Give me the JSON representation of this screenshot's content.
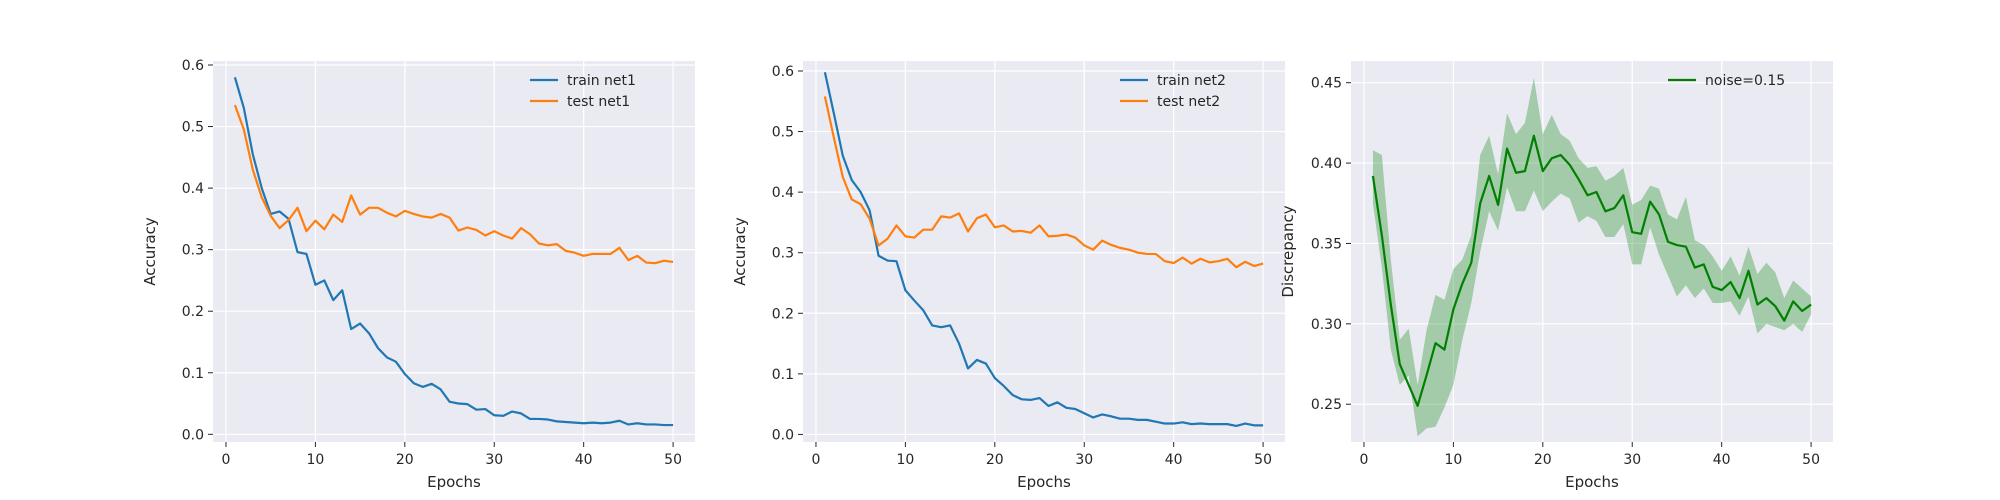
{
  "chart_data": [
    {
      "type": "line",
      "xlabel": "Epochs",
      "ylabel": "Accuracy",
      "xlim": [
        -1.45,
        52.45
      ],
      "ylim": [
        -0.0125,
        0.6065
      ],
      "xticks": [
        0,
        10,
        20,
        30,
        40,
        50
      ],
      "yticks": [
        0.0,
        0.1,
        0.2,
        0.3,
        0.4,
        0.5,
        0.6
      ],
      "ytick_labels": [
        "0.0",
        "0.1",
        "0.2",
        "0.3",
        "0.4",
        "0.5",
        "0.6"
      ],
      "grid": true,
      "legend_position": "top-right",
      "x": [
        1,
        2,
        3,
        4,
        5,
        6,
        7,
        8,
        9,
        10,
        11,
        12,
        13,
        14,
        15,
        16,
        17,
        18,
        19,
        20,
        21,
        22,
        23,
        24,
        25,
        26,
        27,
        28,
        29,
        30,
        31,
        32,
        33,
        34,
        35,
        36,
        37,
        38,
        39,
        40,
        41,
        42,
        43,
        44,
        45,
        46,
        47,
        48,
        49,
        50
      ],
      "series": [
        {
          "name": "train net1",
          "color": "#1f77b4",
          "values": [
            0.58,
            0.53,
            0.455,
            0.4,
            0.358,
            0.362,
            0.35,
            0.296,
            0.293,
            0.243,
            0.25,
            0.218,
            0.234,
            0.171,
            0.18,
            0.164,
            0.14,
            0.125,
            0.118,
            0.098,
            0.083,
            0.077,
            0.082,
            0.073,
            0.053,
            0.05,
            0.049,
            0.04,
            0.041,
            0.031,
            0.03,
            0.037,
            0.034,
            0.025,
            0.025,
            0.024,
            0.021,
            0.02,
            0.019,
            0.018,
            0.019,
            0.018,
            0.019,
            0.022,
            0.016,
            0.018,
            0.016,
            0.016,
            0.015,
            0.015
          ]
        },
        {
          "name": "test net1",
          "color": "#ff7f0e",
          "values": [
            0.535,
            0.495,
            0.43,
            0.385,
            0.355,
            0.335,
            0.348,
            0.368,
            0.33,
            0.347,
            0.333,
            0.357,
            0.345,
            0.388,
            0.357,
            0.368,
            0.368,
            0.36,
            0.354,
            0.363,
            0.358,
            0.354,
            0.352,
            0.358,
            0.352,
            0.331,
            0.336,
            0.332,
            0.323,
            0.33,
            0.323,
            0.318,
            0.335,
            0.325,
            0.31,
            0.307,
            0.309,
            0.298,
            0.295,
            0.29,
            0.293,
            0.293,
            0.293,
            0.303,
            0.283,
            0.29,
            0.279,
            0.278,
            0.282,
            0.28
          ]
        }
      ]
    },
    {
      "type": "line",
      "xlabel": "Epochs",
      "ylabel": "Accuracy",
      "xlim": [
        -1.45,
        52.45
      ],
      "ylim": [
        -0.0125,
        0.6165
      ],
      "xticks": [
        0,
        10,
        20,
        30,
        40,
        50
      ],
      "yticks": [
        0.0,
        0.1,
        0.2,
        0.3,
        0.4,
        0.5,
        0.6
      ],
      "ytick_labels": [
        "0.0",
        "0.1",
        "0.2",
        "0.3",
        "0.4",
        "0.5",
        "0.6"
      ],
      "grid": true,
      "legend_position": "top-right",
      "x": [
        1,
        2,
        3,
        4,
        5,
        6,
        7,
        8,
        9,
        10,
        11,
        12,
        13,
        14,
        15,
        16,
        17,
        18,
        19,
        20,
        21,
        22,
        23,
        24,
        25,
        26,
        27,
        28,
        29,
        30,
        31,
        32,
        33,
        34,
        35,
        36,
        37,
        38,
        39,
        40,
        41,
        42,
        43,
        44,
        45,
        46,
        47,
        48,
        49,
        50
      ],
      "series": [
        {
          "name": "train net2",
          "color": "#1f77b4",
          "values": [
            0.598,
            0.53,
            0.46,
            0.42,
            0.4,
            0.37,
            0.295,
            0.287,
            0.286,
            0.238,
            0.221,
            0.205,
            0.18,
            0.177,
            0.18,
            0.15,
            0.109,
            0.123,
            0.117,
            0.093,
            0.08,
            0.065,
            0.058,
            0.057,
            0.06,
            0.047,
            0.053,
            0.044,
            0.042,
            0.035,
            0.028,
            0.033,
            0.03,
            0.026,
            0.026,
            0.024,
            0.024,
            0.021,
            0.018,
            0.018,
            0.02,
            0.017,
            0.018,
            0.017,
            0.017,
            0.017,
            0.014,
            0.018,
            0.015,
            0.015
          ]
        },
        {
          "name": "test net2",
          "color": "#ff7f0e",
          "values": [
            0.558,
            0.49,
            0.425,
            0.388,
            0.38,
            0.356,
            0.312,
            0.323,
            0.345,
            0.327,
            0.325,
            0.338,
            0.338,
            0.36,
            0.358,
            0.365,
            0.335,
            0.357,
            0.363,
            0.342,
            0.345,
            0.335,
            0.336,
            0.333,
            0.345,
            0.327,
            0.328,
            0.33,
            0.325,
            0.312,
            0.305,
            0.32,
            0.313,
            0.308,
            0.305,
            0.3,
            0.298,
            0.298,
            0.286,
            0.283,
            0.292,
            0.282,
            0.29,
            0.284,
            0.286,
            0.29,
            0.276,
            0.285,
            0.278,
            0.282
          ]
        }
      ]
    },
    {
      "type": "line",
      "xlabel": "Epochs",
      "ylabel": "Discrepancy",
      "xlim": [
        -1.45,
        52.45
      ],
      "ylim": [
        0.2265,
        0.4635
      ],
      "xticks": [
        0,
        10,
        20,
        30,
        40,
        50
      ],
      "yticks": [
        0.25,
        0.3,
        0.35,
        0.4,
        0.45
      ],
      "ytick_labels": [
        "0.25",
        "0.30",
        "0.35",
        "0.40",
        "0.45"
      ],
      "grid": true,
      "legend_position": "top-right",
      "x": [
        1,
        2,
        3,
        4,
        5,
        6,
        7,
        8,
        9,
        10,
        11,
        12,
        13,
        14,
        15,
        16,
        17,
        18,
        19,
        20,
        21,
        22,
        23,
        24,
        25,
        26,
        27,
        28,
        29,
        30,
        31,
        32,
        33,
        34,
        35,
        36,
        37,
        38,
        39,
        40,
        41,
        42,
        43,
        44,
        45,
        46,
        47,
        48,
        49,
        50
      ],
      "series": [
        {
          "name": "noise=0.15",
          "color": "#008000",
          "values": [
            0.392,
            0.355,
            0.312,
            0.275,
            0.262,
            0.249,
            0.268,
            0.288,
            0.284,
            0.309,
            0.325,
            0.338,
            0.375,
            0.392,
            0.374,
            0.409,
            0.394,
            0.395,
            0.417,
            0.395,
            0.403,
            0.405,
            0.399,
            0.39,
            0.38,
            0.382,
            0.37,
            0.372,
            0.38,
            0.357,
            0.356,
            0.376,
            0.368,
            0.351,
            0.349,
            0.348,
            0.335,
            0.337,
            0.323,
            0.321,
            0.326,
            0.316,
            0.333,
            0.312,
            0.316,
            0.311,
            0.302,
            0.314,
            0.308,
            0.312
          ],
          "band_upper": [
            0.408,
            0.405,
            0.34,
            0.29,
            0.297,
            0.262,
            0.296,
            0.318,
            0.315,
            0.334,
            0.34,
            0.355,
            0.405,
            0.417,
            0.393,
            0.431,
            0.418,
            0.425,
            0.453,
            0.418,
            0.43,
            0.418,
            0.414,
            0.403,
            0.397,
            0.398,
            0.389,
            0.392,
            0.397,
            0.374,
            0.377,
            0.386,
            0.384,
            0.368,
            0.365,
            0.379,
            0.352,
            0.349,
            0.342,
            0.333,
            0.342,
            0.33,
            0.348,
            0.331,
            0.338,
            0.332,
            0.316,
            0.327,
            0.322,
            0.317
          ],
          "band_lower": [
            0.375,
            0.335,
            0.284,
            0.262,
            0.268,
            0.23,
            0.235,
            0.236,
            0.248,
            0.262,
            0.29,
            0.313,
            0.345,
            0.37,
            0.358,
            0.385,
            0.37,
            0.37,
            0.383,
            0.37,
            0.376,
            0.381,
            0.378,
            0.363,
            0.367,
            0.364,
            0.354,
            0.354,
            0.362,
            0.337,
            0.337,
            0.36,
            0.343,
            0.33,
            0.317,
            0.324,
            0.316,
            0.322,
            0.313,
            0.313,
            0.314,
            0.305,
            0.317,
            0.294,
            0.3,
            0.298,
            0.296,
            0.3,
            0.295,
            0.306
          ]
        }
      ]
    }
  ]
}
